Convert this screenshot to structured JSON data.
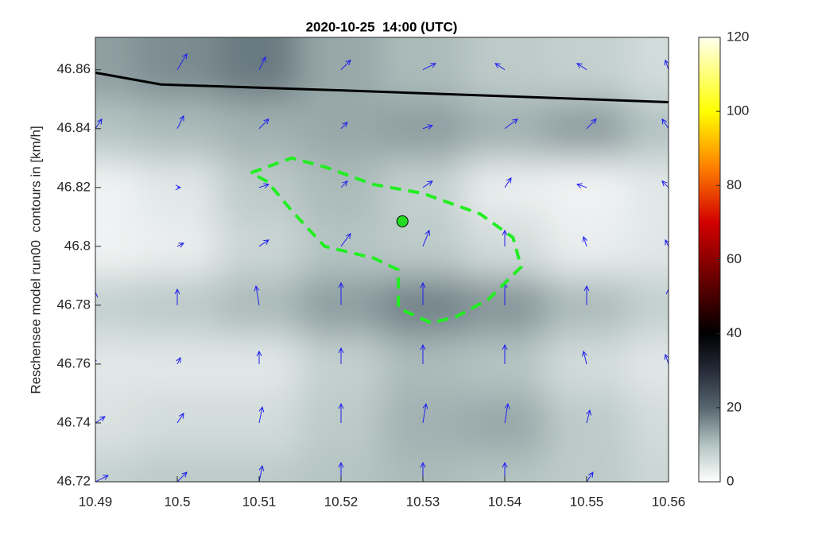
{
  "chart_data": {
    "type": "contourf",
    "title": "2020-10-25  14:00 (UTC)",
    "ylabel": "Reschensee model run00  contours in [km/h]",
    "xlim": [
      10.49,
      10.56
    ],
    "ylim": [
      46.72,
      46.871
    ],
    "xticks": [
      10.49,
      10.5,
      10.51,
      10.52,
      10.53,
      10.54,
      10.55,
      10.56
    ],
    "yticks": [
      46.72,
      46.74,
      46.76,
      46.78,
      46.8,
      46.82,
      46.84,
      46.86
    ],
    "clim": [
      0,
      120
    ],
    "cticks": [
      0,
      20,
      40,
      60,
      80,
      100,
      120
    ],
    "colormap": [
      [
        0,
        "#ffffff"
      ],
      [
        10,
        "#b4c4c2"
      ],
      [
        20,
        "#56666f"
      ],
      [
        30,
        "#262b38"
      ],
      [
        40,
        "#000000"
      ],
      [
        55,
        "#6a0000"
      ],
      [
        70,
        "#d20000"
      ],
      [
        85,
        "#ff8000"
      ],
      [
        100,
        "#ffff00"
      ],
      [
        120,
        "#ffffee"
      ]
    ],
    "x": [
      10.49,
      10.5,
      10.51,
      10.52,
      10.53,
      10.54,
      10.55,
      10.56
    ],
    "y": [
      46.72,
      46.74,
      46.76,
      46.78,
      46.8,
      46.82,
      46.84,
      46.86
    ],
    "speed": [
      [
        8,
        9,
        9,
        10,
        11,
        10,
        9,
        7
      ],
      [
        5,
        6,
        6,
        9,
        12,
        13,
        9,
        6
      ],
      [
        4,
        4,
        4,
        8,
        11,
        10,
        6,
        4
      ],
      [
        8,
        9,
        11,
        14,
        17,
        15,
        11,
        8
      ],
      [
        2,
        3,
        7,
        10,
        9,
        6,
        3,
        4
      ],
      [
        2,
        4,
        9,
        11,
        8,
        3,
        2,
        4
      ],
      [
        10,
        11,
        12,
        13,
        14,
        12,
        14,
        10
      ],
      [
        14,
        16,
        18,
        13,
        11,
        9,
        8,
        6
      ]
    ],
    "u": [
      [
        4,
        3,
        1,
        0,
        0,
        0,
        2,
        3
      ],
      [
        3,
        2,
        1,
        0,
        1,
        1,
        1,
        2
      ],
      [
        -1,
        1,
        0,
        0,
        0,
        0,
        -1,
        -1
      ],
      [
        0,
        0,
        -1,
        0,
        0,
        0,
        0,
        0
      ],
      [
        -2,
        2,
        3,
        3,
        2,
        0,
        -1,
        -1
      ],
      [
        -2,
        1,
        3,
        2,
        3,
        2,
        -3,
        -2
      ],
      [
        2,
        2,
        3,
        2,
        3,
        4,
        3,
        -2
      ],
      [
        -1,
        3,
        2,
        3,
        4,
        -3,
        -3,
        -1
      ]
    ],
    "v": [
      [
        2,
        3,
        5,
        6,
        6,
        6,
        3,
        2
      ],
      [
        2,
        3,
        5,
        6,
        6,
        6,
        4,
        3
      ],
      [
        2,
        2,
        4,
        5,
        6,
        6,
        4,
        3
      ],
      [
        4,
        5,
        6,
        7,
        7,
        7,
        6,
        5
      ],
      [
        0,
        1,
        2,
        4,
        5,
        5,
        3,
        2
      ],
      [
        0,
        0,
        1,
        2,
        2,
        3,
        1,
        2
      ],
      [
        3,
        4,
        3,
        2,
        1,
        3,
        3,
        3
      ],
      [
        6,
        5,
        4,
        3,
        2,
        2,
        2,
        3
      ]
    ],
    "border": {
      "x": [
        10.49,
        10.498,
        10.52,
        10.54,
        10.56
      ],
      "y": [
        46.859,
        46.855,
        46.853,
        46.851,
        46.849
      ]
    },
    "area": {
      "x": [
        10.509,
        10.514,
        10.518,
        10.524,
        10.53,
        10.537,
        10.541,
        10.542,
        10.538,
        10.534,
        10.531,
        10.527,
        10.527,
        10.524,
        10.518,
        10.514,
        10.511,
        10.509
      ],
      "y": [
        46.825,
        46.83,
        46.827,
        46.821,
        46.818,
        46.811,
        46.803,
        46.793,
        46.782,
        46.776,
        46.774,
        46.779,
        46.792,
        46.796,
        46.8,
        46.812,
        46.822,
        46.825
      ],
      "color": "#22ee22"
    },
    "station": {
      "x": 10.5275,
      "y": 46.8085,
      "color": "#22dd22"
    },
    "arrow_color": "#2020ee",
    "border_color": "#000000"
  }
}
